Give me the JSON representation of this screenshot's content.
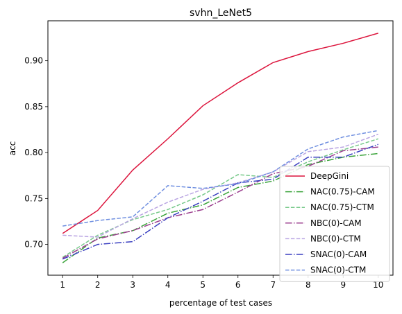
{
  "chart_data": {
    "type": "line",
    "title": "svhn_LeNet5",
    "xlabel": "percentage of test cases",
    "ylabel": "acc",
    "x": [
      1,
      2,
      3,
      4,
      5,
      6,
      7,
      8,
      9,
      10
    ],
    "xticks": [
      "1",
      "2",
      "3",
      "4",
      "5",
      "6",
      "7",
      "8",
      "9",
      "10"
    ],
    "yticks": [
      "0.70",
      "0.75",
      "0.80",
      "0.85",
      "0.90"
    ],
    "ytick_values": [
      0.7,
      0.75,
      0.8,
      0.85,
      0.9
    ],
    "xlim": [
      0.58,
      10.42
    ],
    "ylim": [
      0.6665,
      0.9435
    ],
    "grid": false,
    "legend_position": "lower right",
    "series": [
      {
        "name": "DeepGini",
        "color": "#dc143c",
        "dash": "solid",
        "values": [
          0.712,
          0.737,
          0.781,
          0.815,
          0.851,
          0.876,
          0.898,
          0.91,
          0.919,
          0.93
        ]
      },
      {
        "name": "NAC(0.75)-CAM",
        "color": "#3aa33a",
        "dash": "dashdot",
        "values": [
          0.68,
          0.707,
          0.715,
          0.734,
          0.743,
          0.762,
          0.769,
          0.787,
          0.795,
          0.799
        ]
      },
      {
        "name": "NAC(0.75)-CTM",
        "color": "#77c98a",
        "dash": "dashed",
        "values": [
          0.686,
          0.71,
          0.727,
          0.738,
          0.754,
          0.776,
          0.773,
          0.79,
          0.803,
          0.815
        ]
      },
      {
        "name": "NBC(0)-CAM",
        "color": "#9b3e8e",
        "dash": "dashdot",
        "values": [
          0.685,
          0.706,
          0.715,
          0.729,
          0.738,
          0.757,
          0.777,
          0.785,
          0.802,
          0.806
        ]
      },
      {
        "name": "NBC(0)-CTM",
        "color": "#b9a4e2",
        "dash": "dashed",
        "values": [
          0.71,
          0.708,
          0.728,
          0.746,
          0.76,
          0.767,
          0.779,
          0.801,
          0.806,
          0.82
        ]
      },
      {
        "name": "SNAC(0)-CAM",
        "color": "#3a3fc0",
        "dash": "dashdot",
        "values": [
          0.684,
          0.7,
          0.703,
          0.729,
          0.747,
          0.767,
          0.771,
          0.795,
          0.795,
          0.809
        ]
      },
      {
        "name": "SNAC(0)-CTM",
        "color": "#6f8fe0",
        "dash": "dashed",
        "values": [
          0.72,
          0.726,
          0.73,
          0.764,
          0.761,
          0.766,
          0.779,
          0.804,
          0.817,
          0.824
        ]
      }
    ]
  }
}
